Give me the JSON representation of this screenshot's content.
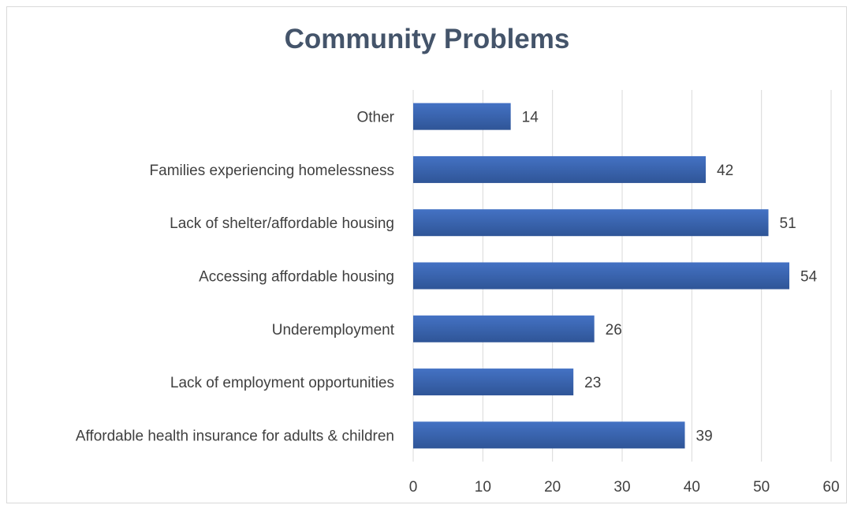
{
  "chart_data": {
    "type": "bar",
    "orientation": "horizontal",
    "title": "Community Problems",
    "categories": [
      "Other",
      "Families experiencing homelessness",
      "Lack of shelter/affordable housing",
      "Accessing affordable housing",
      "Underemployment",
      "Lack of employment opportunities",
      "Affordable health insurance for adults & children"
    ],
    "values": [
      14,
      42,
      51,
      54,
      26,
      23,
      39
    ],
    "data_labels": [
      "14",
      "42",
      "51",
      "54",
      "26",
      "23",
      "39"
    ],
    "xlim": [
      0,
      60
    ],
    "x_ticks": [
      0,
      10,
      20,
      30,
      40,
      50,
      60
    ],
    "x_tick_labels": [
      "0",
      "10",
      "20",
      "30",
      "40",
      "50",
      "60"
    ],
    "xlabel": "",
    "ylabel": "",
    "grid": "vertical",
    "legend": "none",
    "bar_color": "#4472c4",
    "bar_color_dark": "#2f5597"
  }
}
